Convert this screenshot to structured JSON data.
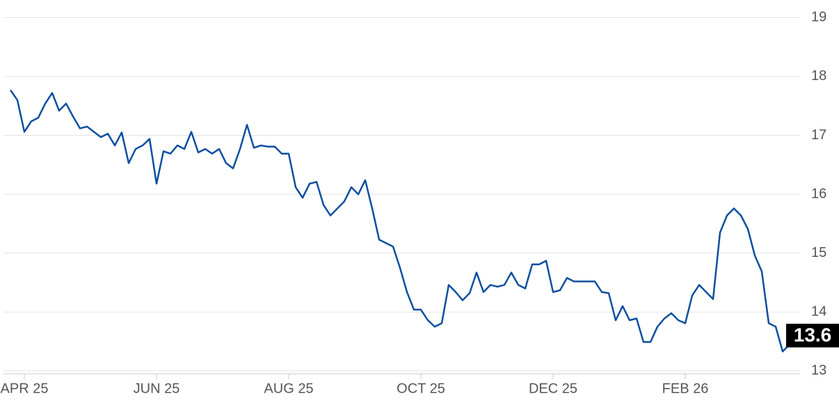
{
  "chart_data": {
    "type": "line",
    "categories": [
      null,
      null,
      "APR 25",
      null,
      null,
      null,
      null,
      null,
      null,
      null,
      null,
      null,
      null,
      null,
      null,
      null,
      null,
      null,
      null,
      null,
      null,
      "JUN 25",
      null,
      null,
      null,
      null,
      null,
      null,
      null,
      null,
      null,
      null,
      null,
      null,
      null,
      null,
      null,
      null,
      null,
      null,
      "AUG 25",
      null,
      null,
      null,
      null,
      null,
      null,
      null,
      null,
      null,
      null,
      null,
      null,
      null,
      null,
      null,
      null,
      null,
      null,
      "OCT 25",
      null,
      null,
      null,
      null,
      null,
      null,
      null,
      null,
      null,
      null,
      null,
      null,
      null,
      null,
      null,
      null,
      null,
      null,
      "DEC 25",
      null,
      null,
      null,
      null,
      null,
      null,
      null,
      null,
      null,
      null,
      null,
      null,
      null,
      null,
      null,
      null,
      null,
      null,
      "FEB 26",
      null,
      null,
      null,
      null,
      null,
      null,
      null,
      null,
      null,
      null,
      null,
      null,
      null,
      null,
      null,
      null
    ],
    "series": [
      {
        "color": "#0a4fa0",
        "values": [
          17.77,
          17.6,
          17.06,
          17.24,
          17.3,
          17.54,
          17.72,
          17.42,
          17.54,
          17.32,
          17.12,
          17.15,
          17.06,
          16.97,
          17.03,
          16.83,
          17.05,
          16.53,
          16.77,
          16.83,
          16.94,
          16.18,
          16.73,
          16.69,
          16.83,
          16.77,
          17.06,
          16.71,
          16.77,
          16.69,
          16.77,
          16.53,
          16.44,
          16.77,
          17.18,
          16.79,
          16.83,
          16.81,
          16.81,
          16.69,
          16.69,
          16.12,
          15.94,
          16.18,
          16.21,
          15.82,
          15.64,
          15.76,
          15.88,
          16.12,
          16.0,
          16.24,
          15.76,
          15.23,
          15.17,
          15.11,
          14.75,
          14.34,
          14.04,
          14.04,
          13.86,
          13.75,
          13.81,
          14.46,
          14.34,
          14.2,
          14.32,
          14.67,
          14.34,
          14.46,
          14.43,
          14.46,
          14.67,
          14.46,
          14.4,
          14.81,
          14.81,
          14.87,
          14.34,
          14.37,
          14.58,
          14.52,
          14.52,
          14.52,
          14.52,
          14.34,
          14.32,
          13.86,
          14.1,
          13.86,
          13.89,
          13.49,
          13.49,
          13.75,
          13.89,
          13.98,
          13.86,
          13.81,
          14.28,
          14.46,
          14.34,
          14.22,
          15.35,
          15.64,
          15.76,
          15.64,
          15.41,
          14.96,
          14.69,
          13.81,
          13.75,
          13.33,
          13.45,
          13.6
        ]
      }
    ],
    "ylim": [
      12.95,
      19.3
    ],
    "yticks": [
      13,
      14,
      15,
      16,
      17,
      18,
      19
    ],
    "grid": true
  }
}
